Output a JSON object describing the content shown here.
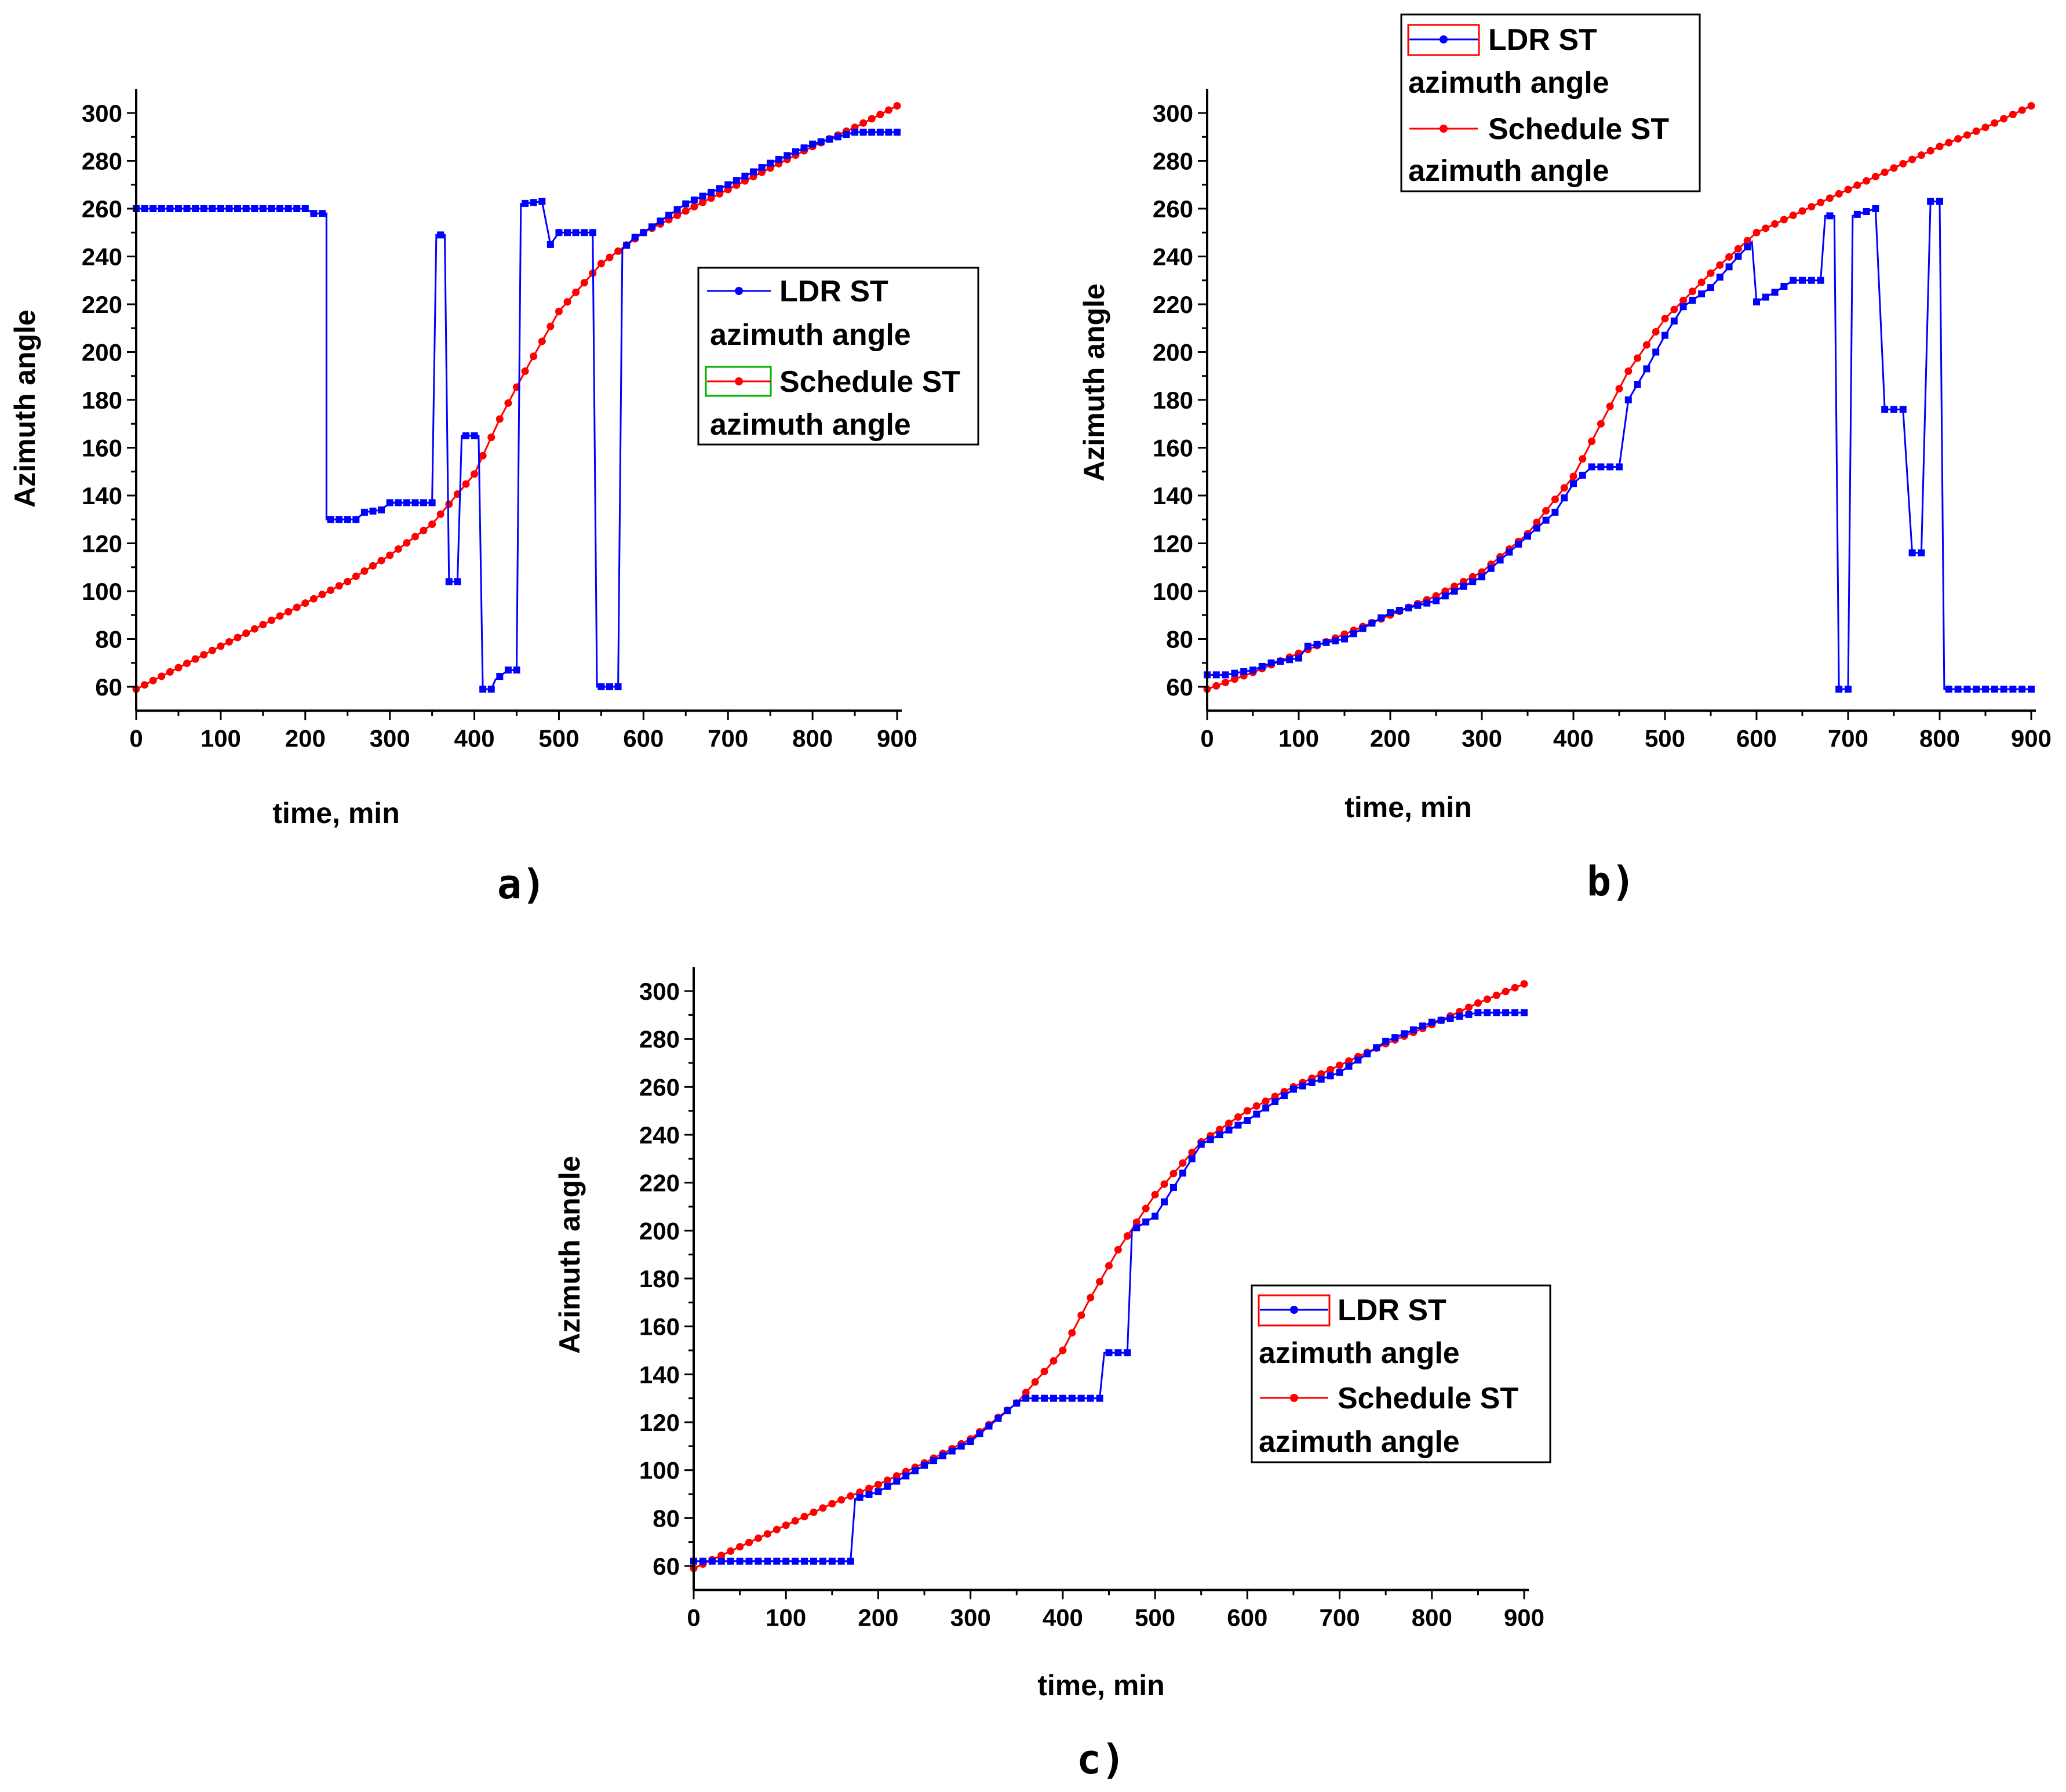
{
  "colors": {
    "ldr": "#0000ff",
    "schedule": "#ff0000",
    "axis": "#000000"
  },
  "chart_data": [
    {
      "type": "line",
      "panel_label": "a)",
      "xlabel": "time, min",
      "ylabel": "Azimuth angle",
      "xlim": [
        0,
        900
      ],
      "ylim": [
        50,
        310
      ],
      "xticks": [
        0,
        100,
        200,
        300,
        400,
        500,
        600,
        700,
        800,
        900
      ],
      "yticks": [
        60,
        80,
        100,
        120,
        140,
        160,
        180,
        200,
        220,
        240,
        260,
        280,
        300
      ],
      "legend": {
        "position": "center-right",
        "entries": [
          {
            "name": "LDR ST",
            "line2": "azimuth angle",
            "swatch": "blue"
          },
          {
            "name": "Schedule ST",
            "line2": "azimuth angle",
            "swatch": "green"
          }
        ]
      },
      "series": [
        {
          "name": "LDR ST azimuth angle",
          "color": "#0000ff",
          "style": "step",
          "points": [
            [
              0,
              260
            ],
            [
              200,
              260
            ],
            [
              210,
              258
            ],
            [
              225,
              258
            ],
            [
              225,
              130
            ],
            [
              260,
              130
            ],
            [
              270,
              133
            ],
            [
              290,
              134
            ],
            [
              300,
              137
            ],
            [
              350,
              137
            ],
            [
              355,
              249
            ],
            [
              365,
              249
            ],
            [
              370,
              104
            ],
            [
              380,
              104
            ],
            [
              385,
              165
            ],
            [
              405,
              165
            ],
            [
              410,
              59
            ],
            [
              420,
              59
            ],
            [
              425,
              63
            ],
            [
              440,
              67
            ],
            [
              450,
              67
            ],
            [
              455,
              262
            ],
            [
              480,
              263
            ],
            [
              490,
              245
            ],
            [
              500,
              250
            ],
            [
              540,
              250
            ],
            [
              545,
              60
            ],
            [
              570,
              60
            ],
            [
              575,
              243
            ],
            [
              590,
              248
            ],
            [
              600,
              250
            ],
            [
              650,
              262
            ],
            [
              700,
              270
            ],
            [
              750,
              279
            ],
            [
              800,
              287
            ],
            [
              850,
              292
            ],
            [
              900,
              292
            ]
          ]
        },
        {
          "name": "Schedule ST azimuth angle",
          "color": "#ff0000",
          "style": "smooth",
          "points": [
            [
              0,
              59
            ],
            [
              50,
              68
            ],
            [
              100,
              77
            ],
            [
              150,
              86
            ],
            [
              200,
              95
            ],
            [
              250,
              104
            ],
            [
              300,
              115
            ],
            [
              350,
              128
            ],
            [
              400,
              149
            ],
            [
              430,
              172
            ],
            [
              460,
              192
            ],
            [
              500,
              217
            ],
            [
              550,
              237
            ],
            [
              600,
              250
            ],
            [
              650,
              259
            ],
            [
              700,
              268
            ],
            [
              750,
              277
            ],
            [
              800,
              286
            ],
            [
              850,
              294
            ],
            [
              900,
              303
            ]
          ]
        }
      ]
    },
    {
      "type": "line",
      "panel_label": "b)",
      "xlabel": "time, min",
      "ylabel": "Azimuth angle",
      "xlim": [
        0,
        900
      ],
      "ylim": [
        50,
        310
      ],
      "xticks": [
        0,
        100,
        200,
        300,
        400,
        500,
        600,
        700,
        800,
        900
      ],
      "yticks": [
        60,
        80,
        100,
        120,
        140,
        160,
        180,
        200,
        220,
        240,
        260,
        280,
        300
      ],
      "legend": {
        "position": "top-left",
        "entries": [
          {
            "name": "LDR ST",
            "line2": "azimuth angle",
            "swatch": "red"
          },
          {
            "name": "Schedule ST",
            "line2": "azimuth angle",
            "swatch": "none"
          }
        ]
      },
      "series": [
        {
          "name": "LDR ST azimuth angle",
          "color": "#0000ff",
          "style": "step",
          "points": [
            [
              0,
              65
            ],
            [
              20,
              65
            ],
            [
              50,
              67
            ],
            [
              70,
              70
            ],
            [
              100,
              72
            ],
            [
              110,
              77
            ],
            [
              150,
              80
            ],
            [
              200,
              91
            ],
            [
              250,
              96
            ],
            [
              300,
              106
            ],
            [
              320,
              113
            ],
            [
              350,
              123
            ],
            [
              380,
              133
            ],
            [
              400,
              145
            ],
            [
              420,
              152
            ],
            [
              450,
              152
            ],
            [
              460,
              180
            ],
            [
              480,
              193
            ],
            [
              500,
              207
            ],
            [
              520,
              219
            ],
            [
              550,
              227
            ],
            [
              580,
              240
            ],
            [
              595,
              246
            ],
            [
              600,
              221
            ],
            [
              620,
              225
            ],
            [
              640,
              230
            ],
            [
              670,
              230
            ],
            [
              675,
              257
            ],
            [
              685,
              257
            ],
            [
              690,
              59
            ],
            [
              700,
              59
            ],
            [
              705,
              257
            ],
            [
              730,
              260
            ],
            [
              740,
              176
            ],
            [
              760,
              176
            ],
            [
              770,
              116
            ],
            [
              780,
              116
            ],
            [
              790,
              263
            ],
            [
              800,
              263
            ],
            [
              805,
              59
            ],
            [
              900,
              59
            ]
          ]
        },
        {
          "name": "Schedule ST azimuth angle",
          "color": "#ff0000",
          "style": "smooth",
          "points": [
            [
              0,
              59
            ],
            [
              50,
              66
            ],
            [
              100,
              74
            ],
            [
              150,
              82
            ],
            [
              200,
              90
            ],
            [
              250,
              98
            ],
            [
              300,
              108
            ],
            [
              350,
              124
            ],
            [
              400,
              148
            ],
            [
              430,
              170
            ],
            [
              460,
              192
            ],
            [
              500,
              214
            ],
            [
              550,
              233
            ],
            [
              600,
              250
            ],
            [
              650,
              259
            ],
            [
              700,
              268
            ],
            [
              750,
              277
            ],
            [
              800,
              286
            ],
            [
              850,
              294
            ],
            [
              900,
              303
            ]
          ]
        }
      ]
    },
    {
      "type": "line",
      "panel_label": "c)",
      "xlabel": "time, min",
      "ylabel": "Azimuth angle",
      "xlim": [
        0,
        900
      ],
      "ylim": [
        50,
        310
      ],
      "xticks": [
        0,
        100,
        200,
        300,
        400,
        500,
        600,
        700,
        800,
        900
      ],
      "yticks": [
        60,
        80,
        100,
        120,
        140,
        160,
        180,
        200,
        220,
        240,
        260,
        280,
        300
      ],
      "legend": {
        "position": "center-right",
        "entries": [
          {
            "name": "LDR ST",
            "line2": "azimuth angle",
            "swatch": "red"
          },
          {
            "name": "Schedule ST",
            "line2": "azimuth angle",
            "swatch": "none"
          }
        ]
      },
      "series": [
        {
          "name": "LDR ST azimuth angle",
          "color": "#0000ff",
          "style": "step",
          "points": [
            [
              0,
              62
            ],
            [
              170,
              62
            ],
            [
              175,
              88
            ],
            [
              200,
              91
            ],
            [
              250,
              102
            ],
            [
              300,
              112
            ],
            [
              350,
              128
            ],
            [
              360,
              130
            ],
            [
              440,
              130
            ],
            [
              445,
              149
            ],
            [
              470,
              149
            ],
            [
              475,
              200
            ],
            [
              500,
              206
            ],
            [
              550,
              236
            ],
            [
              600,
              246
            ],
            [
              650,
              259
            ],
            [
              700,
              266
            ],
            [
              750,
              279
            ],
            [
              800,
              287
            ],
            [
              850,
              291
            ],
            [
              900,
              291
            ]
          ]
        },
        {
          "name": "Schedule ST azimuth angle",
          "color": "#ff0000",
          "style": "smooth",
          "points": [
            [
              0,
              59
            ],
            [
              50,
              68
            ],
            [
              100,
              77
            ],
            [
              150,
              86
            ],
            [
              200,
              94
            ],
            [
              250,
              103
            ],
            [
              300,
              113
            ],
            [
              350,
              128
            ],
            [
              400,
              150
            ],
            [
              430,
              172
            ],
            [
              460,
              192
            ],
            [
              500,
              215
            ],
            [
              550,
              237
            ],
            [
              600,
              250
            ],
            [
              650,
              260
            ],
            [
              700,
              269
            ],
            [
              750,
              278
            ],
            [
              800,
              286
            ],
            [
              850,
              295
            ],
            [
              900,
              303
            ]
          ]
        }
      ]
    }
  ]
}
